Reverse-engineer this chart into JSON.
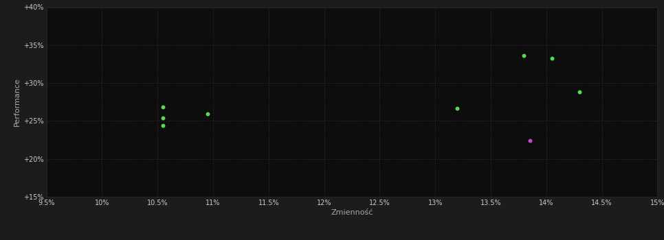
{
  "background_color": "#1c1c1c",
  "plot_bg_color": "#0d0d0d",
  "grid_color": "#2a2a2a",
  "xlabel": "Zmienność",
  "ylabel": "Performance",
  "xlim": [
    0.095,
    0.15
  ],
  "ylim": [
    0.15,
    0.4
  ],
  "xticks": [
    0.095,
    0.1,
    0.105,
    0.11,
    0.115,
    0.12,
    0.125,
    0.13,
    0.135,
    0.14,
    0.145,
    0.15
  ],
  "yticks": [
    0.15,
    0.2,
    0.25,
    0.3,
    0.35,
    0.4
  ],
  "green_points": [
    [
      0.1055,
      0.268
    ],
    [
      0.1055,
      0.254
    ],
    [
      0.1055,
      0.244
    ],
    [
      0.1095,
      0.259
    ],
    [
      0.132,
      0.267
    ],
    [
      0.138,
      0.336
    ],
    [
      0.1405,
      0.333
    ],
    [
      0.143,
      0.288
    ]
  ],
  "magenta_points": [
    [
      0.1385,
      0.224
    ]
  ],
  "green_color": "#55dd55",
  "magenta_color": "#cc44cc",
  "point_size": 18,
  "tick_label_color": "#cccccc",
  "axis_label_color": "#aaaaaa",
  "tick_fontsize": 7,
  "label_fontsize": 8
}
